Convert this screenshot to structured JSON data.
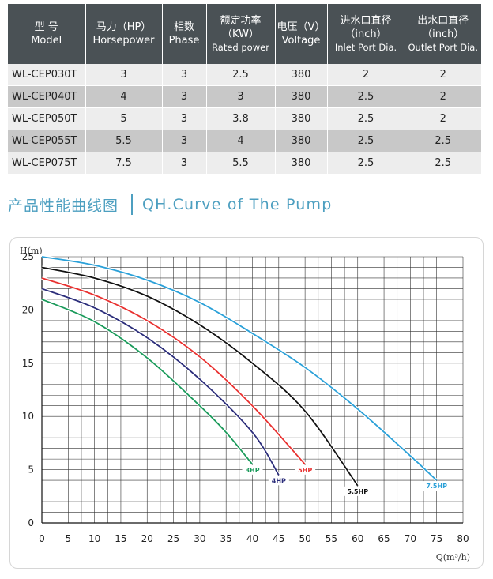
{
  "table": {
    "headers": [
      {
        "zh": "型 号",
        "en": "Model"
      },
      {
        "zh": "马力（HP）",
        "en": "Horsepower"
      },
      {
        "zh": "相数",
        "en": "Phase"
      },
      {
        "zh": "额定功率",
        "zh2": "（KW）",
        "en": "Rated power"
      },
      {
        "zh": "电压（V）",
        "en": "Voltage"
      },
      {
        "zh": "进水口直径",
        "zh2": "（inch）",
        "en": "Inlet Port Dia."
      },
      {
        "zh": "出水口直径",
        "zh2": "（inch）",
        "en": "Outlet Port Dia."
      }
    ],
    "rows": [
      [
        "WL-CEP030T",
        "3",
        "3",
        "2.5",
        "380",
        "2",
        "2"
      ],
      [
        "WL-CEP040T",
        "4",
        "3",
        "3",
        "380",
        "2.5",
        "2"
      ],
      [
        "WL-CEP050T",
        "5",
        "3",
        "3.8",
        "380",
        "2.5",
        "2"
      ],
      [
        "WL-CEP055T",
        "5.5",
        "3",
        "4",
        "380",
        "2.5",
        "2.5"
      ],
      [
        "WL-CEP075T",
        "7.5",
        "3",
        "5.5",
        "380",
        "2.5",
        "2.5"
      ]
    ],
    "colors": {
      "header_bg": "#4a5155",
      "row_light": "#ededed",
      "row_dark": "#c8c8c8"
    }
  },
  "section_title": {
    "zh": "产品性能曲线图",
    "en": "QH.Curve of The Pump",
    "color": "#4d9fc0"
  },
  "chart_data": {
    "type": "line",
    "ylabel": "H(m)",
    "xlabel": "Q(m³/h)",
    "xlim": [
      0,
      80
    ],
    "ylim": [
      0,
      25
    ],
    "xticks": [
      0,
      5,
      10,
      15,
      20,
      25,
      30,
      35,
      40,
      45,
      50,
      55,
      60,
      65,
      70,
      75,
      80
    ],
    "yticks": [
      0,
      5,
      10,
      15,
      20,
      25
    ],
    "grid": true,
    "series": [
      {
        "name": "3HP",
        "color": "#1a9a5a",
        "x": [
          0,
          10,
          20,
          30,
          35,
          40
        ],
        "y": [
          21,
          18.9,
          15.5,
          11,
          8.5,
          5.5
        ]
      },
      {
        "name": "4HP",
        "color": "#2b2d7a",
        "x": [
          0,
          10,
          20,
          30,
          40,
          45
        ],
        "y": [
          22,
          20.2,
          17.4,
          13.5,
          8.5,
          4.5
        ]
      },
      {
        "name": "5HP",
        "color": "#e8302f",
        "x": [
          0,
          10,
          20,
          30,
          40,
          50
        ],
        "y": [
          23,
          21.4,
          19,
          15.6,
          11,
          5.5
        ]
      },
      {
        "name": "5.5HP",
        "color": "#111111",
        "x": [
          0,
          10,
          20,
          30,
          40,
          50,
          60
        ],
        "y": [
          24,
          23,
          21.3,
          18.6,
          15,
          10.5,
          3.5
        ]
      },
      {
        "name": "7.5HP",
        "color": "#2aa0d8",
        "x": [
          0,
          10,
          20,
          30,
          40,
          50,
          60,
          70,
          75
        ],
        "y": [
          25,
          24.2,
          22.8,
          20.7,
          17.8,
          14.6,
          10.7,
          6.3,
          4
        ]
      }
    ]
  }
}
